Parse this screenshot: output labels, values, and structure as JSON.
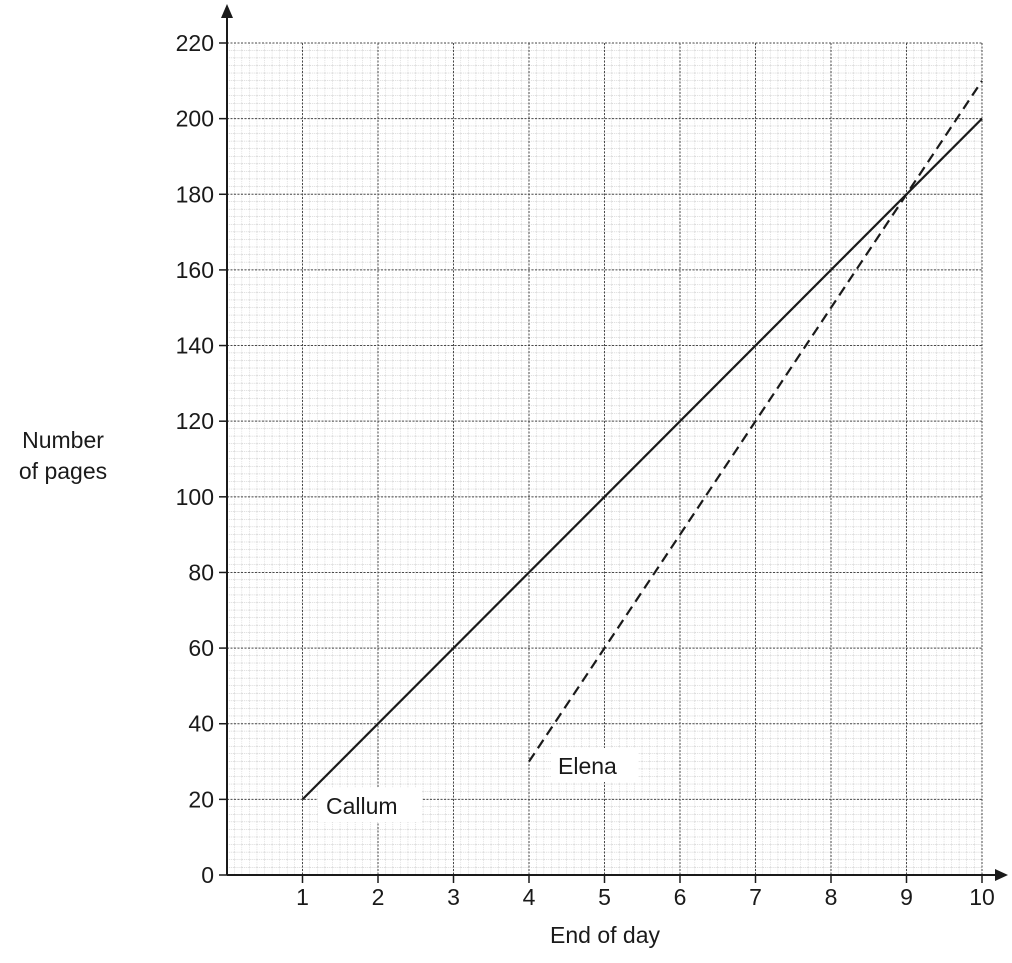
{
  "chart_data": {
    "type": "line",
    "title": "",
    "xlabel": "End of day",
    "ylabel_line1": "Number",
    "ylabel_line2": "of pages",
    "xlim": [
      0,
      10
    ],
    "ylim": [
      0,
      220
    ],
    "x_ticks": [
      1,
      2,
      3,
      4,
      5,
      6,
      7,
      8,
      9,
      10
    ],
    "y_ticks": [
      0,
      20,
      40,
      60,
      80,
      100,
      120,
      140,
      160,
      180,
      200,
      220
    ],
    "grid": "on",
    "series": [
      {
        "name": "Callum",
        "style": "solid",
        "color": "#1a1a1a",
        "x": [
          1,
          10
        ],
        "y": [
          20,
          200
        ]
      },
      {
        "name": "Elena",
        "style": "dashed",
        "color": "#1a1a1a",
        "x": [
          4,
          10
        ],
        "y": [
          30,
          210
        ]
      }
    ]
  }
}
